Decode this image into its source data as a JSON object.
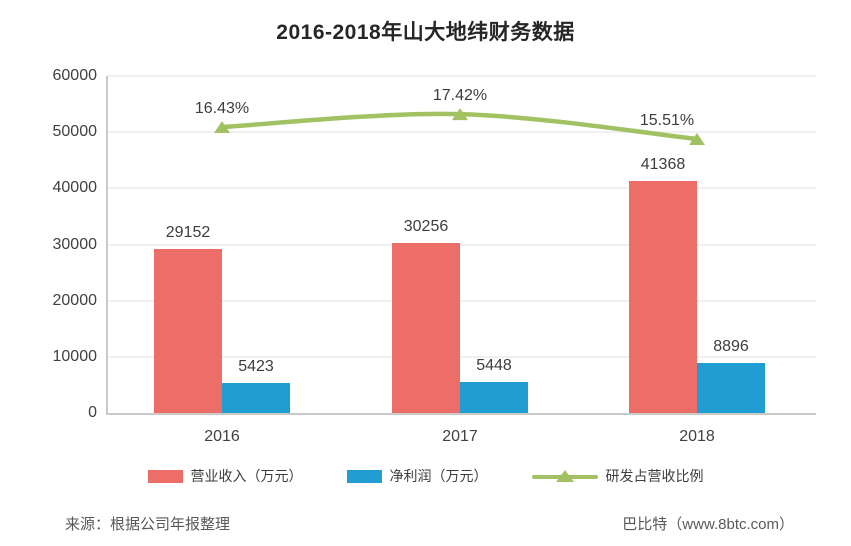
{
  "chart_data": {
    "type": "combo",
    "title": "2016-2018年山大地纬财务数据",
    "categories": [
      "2016",
      "2017",
      "2018"
    ],
    "series": [
      {
        "name": "营业收入（万元）",
        "type": "bar",
        "color": "#ED6D68",
        "values": [
          29152,
          30256,
          41368
        ]
      },
      {
        "name": "净利润（万元）",
        "type": "bar",
        "color": "#219DD3",
        "values": [
          5423,
          5448,
          8896
        ]
      },
      {
        "name": "研发占营收比例",
        "type": "line",
        "color": "#A2C162",
        "values": [
          16.43,
          17.42,
          15.51
        ],
        "value_labels": [
          "16.43%",
          "17.42%",
          "15.51%"
        ]
      }
    ],
    "ylim": [
      0,
      60000
    ],
    "yticks": [
      0,
      10000,
      20000,
      30000,
      40000,
      50000,
      60000
    ],
    "grid": true,
    "legend_position": "bottom"
  },
  "footer": {
    "source": "来源：根据公司年报整理",
    "brand": "巴比特（www.8btc.com）"
  },
  "colors": {
    "revenue_bar": "#ED6D68",
    "profit_bar": "#219DD3",
    "rd_line": "#A2C162",
    "grid": "#F0F0F0",
    "axis": "#C9C9C9",
    "label_text": "#404040",
    "footer_text": "#595959"
  }
}
